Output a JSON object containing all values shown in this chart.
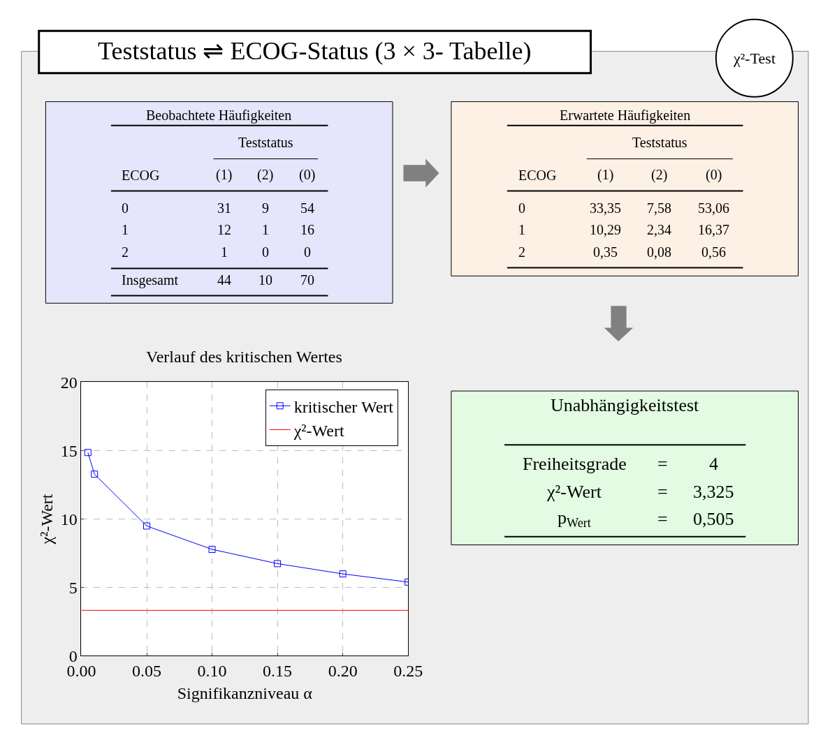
{
  "chart_data": [
    {
      "type": "other",
      "title": "Teststatus ⇌ ECOG-Status (3 × 3- Tabelle)",
      "annotations": [
        "χ²-Test"
      ]
    },
    {
      "type": "other",
      "title": "Beobachtete Häufigkeiten",
      "annotations": [
        "Teststatus",
        "ECOG",
        "(1)",
        "(2)",
        "(0)",
        "0",
        "31",
        "9",
        "54",
        "1",
        "12",
        "1",
        "16",
        "2",
        "1",
        "0",
        "0",
        "Insgesamt",
        "44",
        "10",
        "70"
      ]
    },
    {
      "type": "other",
      "title": "Erwartete Häufigkeiten",
      "annotations": [
        "Teststatus",
        "ECOG",
        "(1)",
        "(2)",
        "(0)",
        "0",
        "33,35",
        "7,58",
        "53,06",
        "1",
        "10,29",
        "2,34",
        "16,37",
        "2",
        "0,35",
        "0,08",
        "0,56"
      ]
    },
    {
      "type": "line",
      "title": "Verlauf des kritischen Wertes",
      "xlabel": "Signifikanzniveau α",
      "ylabel": "χ²-Wert",
      "series": [
        {
          "name": "kritischer Wert",
          "color": "#0000ff",
          "x": [
            0.005,
            0.01,
            0.05,
            0.1,
            0.15,
            0.2,
            0.25
          ],
          "values": [
            14.86,
            13.28,
            9.49,
            7.78,
            6.74,
            5.99,
            5.39
          ]
        }
      ],
      "ref_lines": [
        {
          "axis": "y",
          "value": 3.325,
          "label": "χ²-Wert",
          "color": "#ff0000"
        }
      ],
      "xlim": [
        0,
        0.25
      ],
      "xticks": [
        {
          "value": 0,
          "label": "0.00"
        },
        0.05,
        {
          "value": 0.1,
          "label": "0.10"
        },
        0.15,
        {
          "value": 0.2,
          "label": "0.20"
        },
        0.25
      ],
      "ylim": [
        0,
        20
      ],
      "yticks": [
        0,
        5,
        10,
        15,
        20
      ],
      "grid": true,
      "legend": "top right",
      "marker": "square",
      "line_style": "solid"
    },
    {
      "type": "other",
      "title": "Unabhängigkeitstest",
      "annotations": [
        "Freiheitsgrade",
        "=",
        "4",
        "χ²-Wert",
        "=",
        "3,325",
        "p$_{Wert}$",
        "=",
        "0,505"
      ]
    }
  ]
}
